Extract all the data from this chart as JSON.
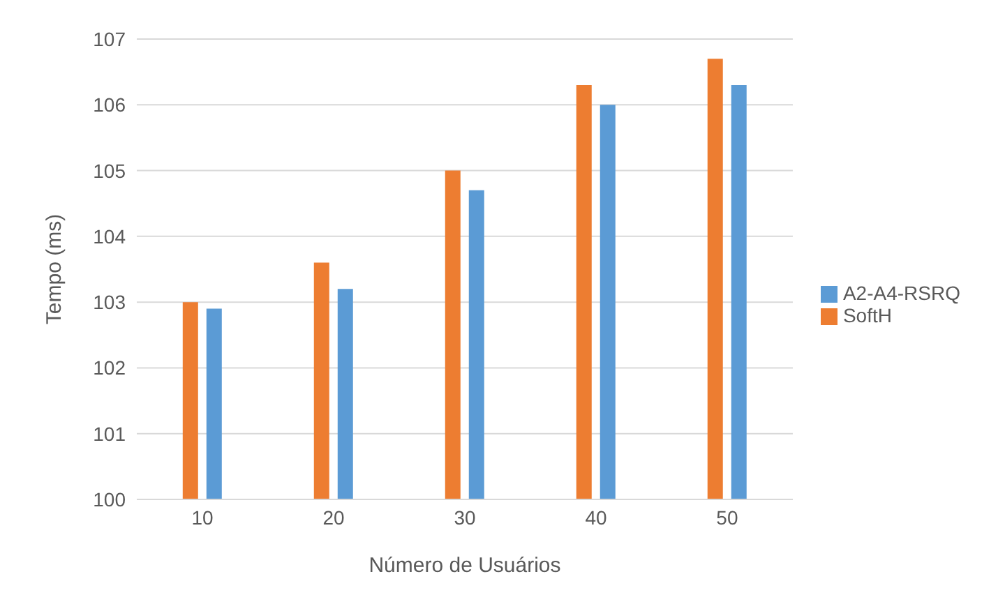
{
  "chart_data": {
    "type": "bar",
    "xlabel": "Número de Usuários",
    "ylabel": "Tempo (ms)",
    "categories": [
      "10",
      "20",
      "30",
      "40",
      "50"
    ],
    "series": [
      {
        "name": "SoftH",
        "color": "#ed7d31",
        "values": [
          103.0,
          103.6,
          105.0,
          106.3,
          106.7
        ]
      },
      {
        "name": "A2-A4-RSRQ",
        "color": "#5b9bd5",
        "values": [
          102.9,
          103.2,
          104.7,
          106.0,
          106.3
        ]
      }
    ],
    "ylim": [
      100,
      107
    ],
    "yticks": [
      100,
      101,
      102,
      103,
      104,
      105,
      106,
      107
    ],
    "grid": "y",
    "legend": "right"
  }
}
